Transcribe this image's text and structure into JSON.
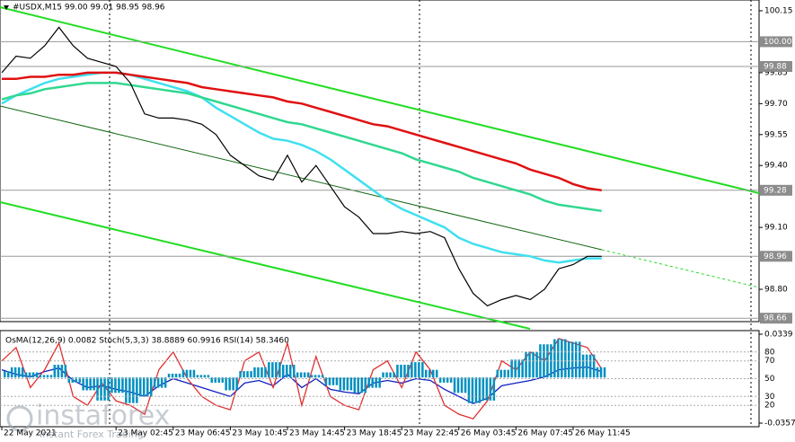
{
  "chart_data": {
    "type": "line",
    "title": "#USDX,M15  99.00 99.01 98.95 98.96",
    "categories": [
      "22 May 2021",
      null,
      null,
      null,
      null,
      null,
      null,
      null,
      "23 May 02:45",
      null,
      null,
      null,
      "23 May 06:45",
      null,
      null,
      null,
      "23 May 10:45",
      null,
      null,
      null,
      "23 May 14:45",
      null,
      null,
      null,
      "23 May 18:45",
      null,
      null,
      null,
      "23 May 22:45",
      null,
      null,
      null,
      "26 May 03:45",
      null,
      null,
      null,
      "26 May 07:45",
      null,
      null,
      null,
      "26 May 11:45",
      null,
      null
    ],
    "series": [
      {
        "color": "#000000",
        "values": [
          99.85,
          99.93,
          99.92,
          99.98,
          100.07,
          99.98,
          99.92,
          99.9,
          99.88,
          99.8,
          99.65,
          99.63,
          99.63,
          99.62,
          99.6,
          99.55,
          99.45,
          99.4,
          99.35,
          99.33,
          99.45,
          99.32,
          99.4,
          99.3,
          99.2,
          99.15,
          99.07,
          99.07,
          99.08,
          99.07,
          99.08,
          99.05,
          98.9,
          98.78,
          98.72,
          98.75,
          98.77,
          98.75,
          98.8,
          98.9,
          98.92,
          98.96,
          98.96
        ]
      },
      {
        "color": "#e01010",
        "values": [
          99.82,
          99.82,
          99.83,
          99.83,
          99.84,
          99.84,
          99.85,
          99.85,
          99.85,
          99.84,
          99.83,
          99.82,
          99.81,
          99.8,
          99.78,
          99.77,
          99.76,
          99.75,
          99.74,
          99.73,
          99.71,
          99.7,
          99.68,
          99.66,
          99.64,
          99.62,
          99.6,
          99.59,
          99.57,
          99.55,
          99.53,
          99.51,
          99.49,
          99.47,
          99.45,
          99.43,
          99.41,
          99.38,
          99.36,
          99.34,
          99.31,
          99.29,
          99.28
        ]
      },
      {
        "color": "#30d890",
        "values": [
          99.72,
          99.74,
          99.75,
          99.77,
          99.78,
          99.79,
          99.8,
          99.8,
          99.8,
          99.79,
          99.78,
          99.77,
          99.76,
          99.75,
          99.73,
          99.71,
          99.69,
          99.67,
          99.65,
          99.63,
          99.61,
          99.6,
          99.58,
          99.56,
          99.54,
          99.52,
          99.5,
          99.48,
          99.46,
          99.43,
          99.41,
          99.39,
          99.37,
          99.34,
          99.32,
          99.3,
          99.28,
          99.26,
          99.23,
          99.21,
          99.2,
          99.19,
          99.18
        ]
      },
      {
        "color": "#40e0f0",
        "values": [
          99.7,
          99.74,
          99.77,
          99.8,
          99.82,
          99.83,
          99.84,
          99.85,
          99.85,
          99.84,
          99.82,
          99.8,
          99.78,
          99.76,
          99.73,
          99.68,
          99.64,
          99.6,
          99.56,
          99.53,
          99.52,
          99.5,
          99.47,
          99.43,
          99.38,
          99.33,
          99.28,
          99.23,
          99.19,
          99.16,
          99.13,
          99.1,
          99.05,
          99.02,
          99.0,
          98.98,
          98.97,
          98.96,
          98.94,
          98.93,
          98.94,
          98.95,
          98.95
        ]
      }
    ],
    "ylim": [
      98.65,
      100.2
    ],
    "yticks": [
      100.15,
      99.85,
      {
        "value": 99.7,
        "label": "99.70"
      },
      99.55,
      {
        "value": 99.4,
        "label": "99.40"
      },
      {
        "value": 99.1,
        "label": "99.10"
      },
      {
        "value": 98.8,
        "label": "98.80"
      }
    ],
    "price_levels": [
      {
        "value": 100.0,
        "label": "100.00"
      },
      {
        "value": 99.88,
        "label": "99.88"
      },
      {
        "value": 99.28,
        "label": "99.28"
      },
      {
        "value": 98.96,
        "label": "98.96"
      },
      {
        "value": 98.66,
        "label": "98.66"
      }
    ],
    "indicator": {
      "title": "OsMA(12,26,9) 0.0082  Stoch(5,3,3) 38.8889 60.9916  RSI(14) 58.3460",
      "ylim": [
        -0.0357,
        0.0339
      ],
      "yticks": [
        0.0339,
        -0.0357
      ],
      "color": "#0090c0",
      "values": [
        0.005,
        0.008,
        0.004,
        0.002,
        0.01,
        -0.004,
        -0.01,
        -0.018,
        -0.012,
        -0.02,
        -0.015,
        -0.008,
        0.003,
        0.006,
        0.002,
        -0.004,
        -0.01,
        0.005,
        0.008,
        0.012,
        0.01,
        0.004,
        0.002,
        -0.006,
        -0.01,
        -0.012,
        -0.008,
        0.004,
        0.01,
        0.012,
        0.006,
        -0.004,
        -0.012,
        -0.02,
        -0.018,
        0.006,
        0.014,
        0.02,
        0.026,
        0.03,
        0.028,
        0.018,
        0.008
      ],
      "osc_ylim": [
        0,
        100
      ],
      "osc_yticks": [
        80,
        70,
        50,
        30,
        20
      ],
      "osc_series": [
        {
          "color": "#1020c0",
          "values": [
            60,
            55,
            52,
            58,
            62,
            48,
            40,
            42,
            38,
            35,
            30,
            42,
            50,
            45,
            40,
            35,
            30,
            45,
            48,
            42,
            55,
            40,
            50,
            38,
            35,
            33,
            45,
            48,
            45,
            50,
            48,
            38,
            30,
            22,
            28,
            42,
            45,
            48,
            52,
            60,
            62,
            63,
            58
          ]
        },
        {
          "color": "#e03030",
          "values": [
            70,
            85,
            40,
            60,
            90,
            30,
            20,
            45,
            25,
            20,
            10,
            60,
            80,
            50,
            30,
            20,
            15,
            70,
            80,
            40,
            90,
            20,
            75,
            30,
            20,
            15,
            60,
            70,
            40,
            80,
            60,
            20,
            10,
            5,
            25,
            70,
            60,
            80,
            70,
            95,
            90,
            85,
            61
          ]
        }
      ]
    },
    "watermark": "instaforex",
    "watermark_sub": "Instant Forex Trading"
  }
}
